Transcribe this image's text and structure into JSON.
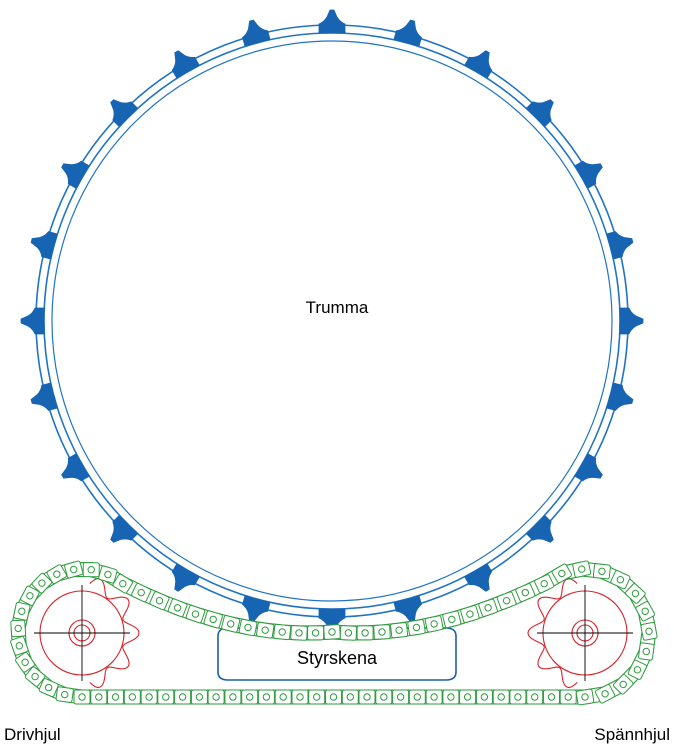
{
  "labels": {
    "drum": "Trumma",
    "guide_rail": "Styrskena",
    "drive_wheel": "Drivhjul",
    "tension_wheel": "Spännhjul"
  },
  "colors": {
    "drum": "#1f74c4",
    "drum_teeth": "#1764b2",
    "chain": "#2e9b3e",
    "chain_fill": "#ffffff",
    "sprocket": "#d8232a",
    "centerline": "#000000",
    "rail": "#1f5fa8"
  },
  "drum": {
    "tooth_count": 24
  },
  "chain": {
    "style": "roller chain"
  }
}
